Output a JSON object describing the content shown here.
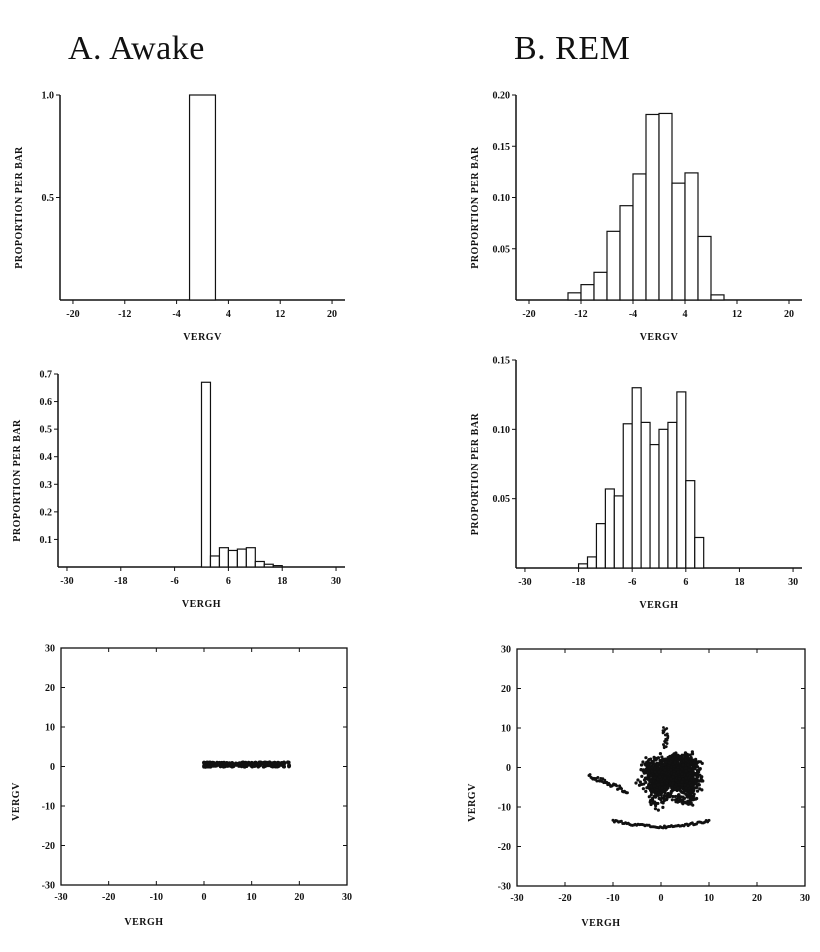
{
  "column_titles": {
    "a": "A. Awake",
    "b": "B. REM"
  },
  "chart_data": [
    {
      "id": "awake-vergv-hist",
      "type": "bar",
      "xlabel": "VERGV",
      "ylabel": "PROPORTION PER BAR",
      "xlim": [
        -22,
        22
      ],
      "ylim": [
        0,
        1.0
      ],
      "xticks": [
        -20,
        -12,
        -4,
        4,
        12,
        20
      ],
      "yticks": [
        0.5,
        1.0
      ],
      "ytick_labels": [
        "0.5",
        "1.0"
      ],
      "bins": [
        {
          "x0": -2,
          "x1": 2,
          "value": 1.0
        }
      ]
    },
    {
      "id": "awake-vergh-hist",
      "type": "bar",
      "xlabel": "VERGH",
      "ylabel": "PROPORTION PER BAR",
      "xlim": [
        -32,
        32
      ],
      "ylim": [
        0,
        0.7
      ],
      "xticks": [
        -30,
        -18,
        -6,
        6,
        18,
        30
      ],
      "yticks": [
        0.1,
        0.2,
        0.3,
        0.4,
        0.5,
        0.6,
        0.7
      ],
      "ytick_labels": [
        "0.1",
        "0.2",
        "0.3",
        "0.4",
        "0.5",
        "0.6",
        "0.7"
      ],
      "bins": [
        {
          "x0": 0,
          "x1": 2,
          "value": 0.67
        },
        {
          "x0": 2,
          "x1": 4,
          "value": 0.04
        },
        {
          "x0": 4,
          "x1": 6,
          "value": 0.07
        },
        {
          "x0": 6,
          "x1": 8,
          "value": 0.06
        },
        {
          "x0": 8,
          "x1": 10,
          "value": 0.065
        },
        {
          "x0": 10,
          "x1": 12,
          "value": 0.07
        },
        {
          "x0": 12,
          "x1": 14,
          "value": 0.02
        },
        {
          "x0": 14,
          "x1": 16,
          "value": 0.01
        },
        {
          "x0": 16,
          "x1": 18,
          "value": 0.005
        }
      ]
    },
    {
      "id": "awake-scatter",
      "type": "scatter",
      "xlabel": "VERGH",
      "ylabel": "VERGV",
      "xlim": [
        -30,
        30
      ],
      "ylim": [
        -30,
        30
      ],
      "xticks": [
        -30,
        -20,
        -10,
        0,
        10,
        20,
        30
      ],
      "yticks": [
        -30,
        -20,
        -10,
        0,
        10,
        20,
        30
      ],
      "cluster": {
        "x_range": [
          0,
          18
        ],
        "y_center": 0.5,
        "y_spread": 0.6
      }
    },
    {
      "id": "rem-vergv-hist",
      "type": "bar",
      "xlabel": "VERGV",
      "ylabel": "PROPORTION PER BAR",
      "xlim": [
        -22,
        22
      ],
      "ylim": [
        0,
        0.2
      ],
      "xticks": [
        -20,
        -12,
        -4,
        4,
        12,
        20
      ],
      "yticks": [
        0.05,
        0.1,
        0.15,
        0.2
      ],
      "ytick_labels": [
        "0.05",
        "0.10",
        "0.15",
        "0.20"
      ],
      "bins": [
        {
          "x0": -14,
          "x1": -12,
          "value": 0.007
        },
        {
          "x0": -12,
          "x1": -10,
          "value": 0.015
        },
        {
          "x0": -10,
          "x1": -8,
          "value": 0.027
        },
        {
          "x0": -8,
          "x1": -6,
          "value": 0.067
        },
        {
          "x0": -6,
          "x1": -4,
          "value": 0.092
        },
        {
          "x0": -4,
          "x1": -2,
          "value": 0.123
        },
        {
          "x0": -2,
          "x1": 0,
          "value": 0.181
        },
        {
          "x0": 0,
          "x1": 2,
          "value": 0.182
        },
        {
          "x0": 2,
          "x1": 4,
          "value": 0.114
        },
        {
          "x0": 4,
          "x1": 6,
          "value": 0.124
        },
        {
          "x0": 6,
          "x1": 8,
          "value": 0.062
        },
        {
          "x0": 8,
          "x1": 10,
          "value": 0.005
        }
      ]
    },
    {
      "id": "rem-vergh-hist",
      "type": "bar",
      "xlabel": "VERGH",
      "ylabel": "PROPORTION PER BAR",
      "xlim": [
        -32,
        32
      ],
      "ylim": [
        0,
        0.15
      ],
      "xticks": [
        -30,
        -18,
        -6,
        6,
        18,
        30
      ],
      "yticks": [
        0.05,
        0.1,
        0.15
      ],
      "ytick_labels": [
        "0.05",
        "0.10",
        "0.15"
      ],
      "bins": [
        {
          "x0": -18,
          "x1": -16,
          "value": 0.003
        },
        {
          "x0": -16,
          "x1": -14,
          "value": 0.008
        },
        {
          "x0": -14,
          "x1": -12,
          "value": 0.032
        },
        {
          "x0": -12,
          "x1": -10,
          "value": 0.057
        },
        {
          "x0": -10,
          "x1": -8,
          "value": 0.052
        },
        {
          "x0": -8,
          "x1": -6,
          "value": 0.104
        },
        {
          "x0": -6,
          "x1": -4,
          "value": 0.13
        },
        {
          "x0": -4,
          "x1": -2,
          "value": 0.105
        },
        {
          "x0": -2,
          "x1": 0,
          "value": 0.089
        },
        {
          "x0": 0,
          "x1": 2,
          "value": 0.1
        },
        {
          "x0": 2,
          "x1": 4,
          "value": 0.105
        },
        {
          "x0": 4,
          "x1": 6,
          "value": 0.127
        },
        {
          "x0": 6,
          "x1": 8,
          "value": 0.063
        },
        {
          "x0": 8,
          "x1": 10,
          "value": 0.022
        }
      ]
    },
    {
      "id": "rem-scatter",
      "type": "scatter",
      "xlabel": "VERGH",
      "ylabel": "VERGV",
      "xlim": [
        -30,
        30
      ],
      "ylim": [
        -30,
        30
      ],
      "xticks": [
        -30,
        -20,
        -10,
        0,
        10,
        20,
        30
      ],
      "yticks": [
        -30,
        -20,
        -10,
        0,
        10,
        20,
        30
      ],
      "cluster": {
        "x_range": [
          -15,
          12
        ],
        "y_range": [
          -15,
          10
        ],
        "center": [
          1,
          -3
        ]
      }
    }
  ]
}
